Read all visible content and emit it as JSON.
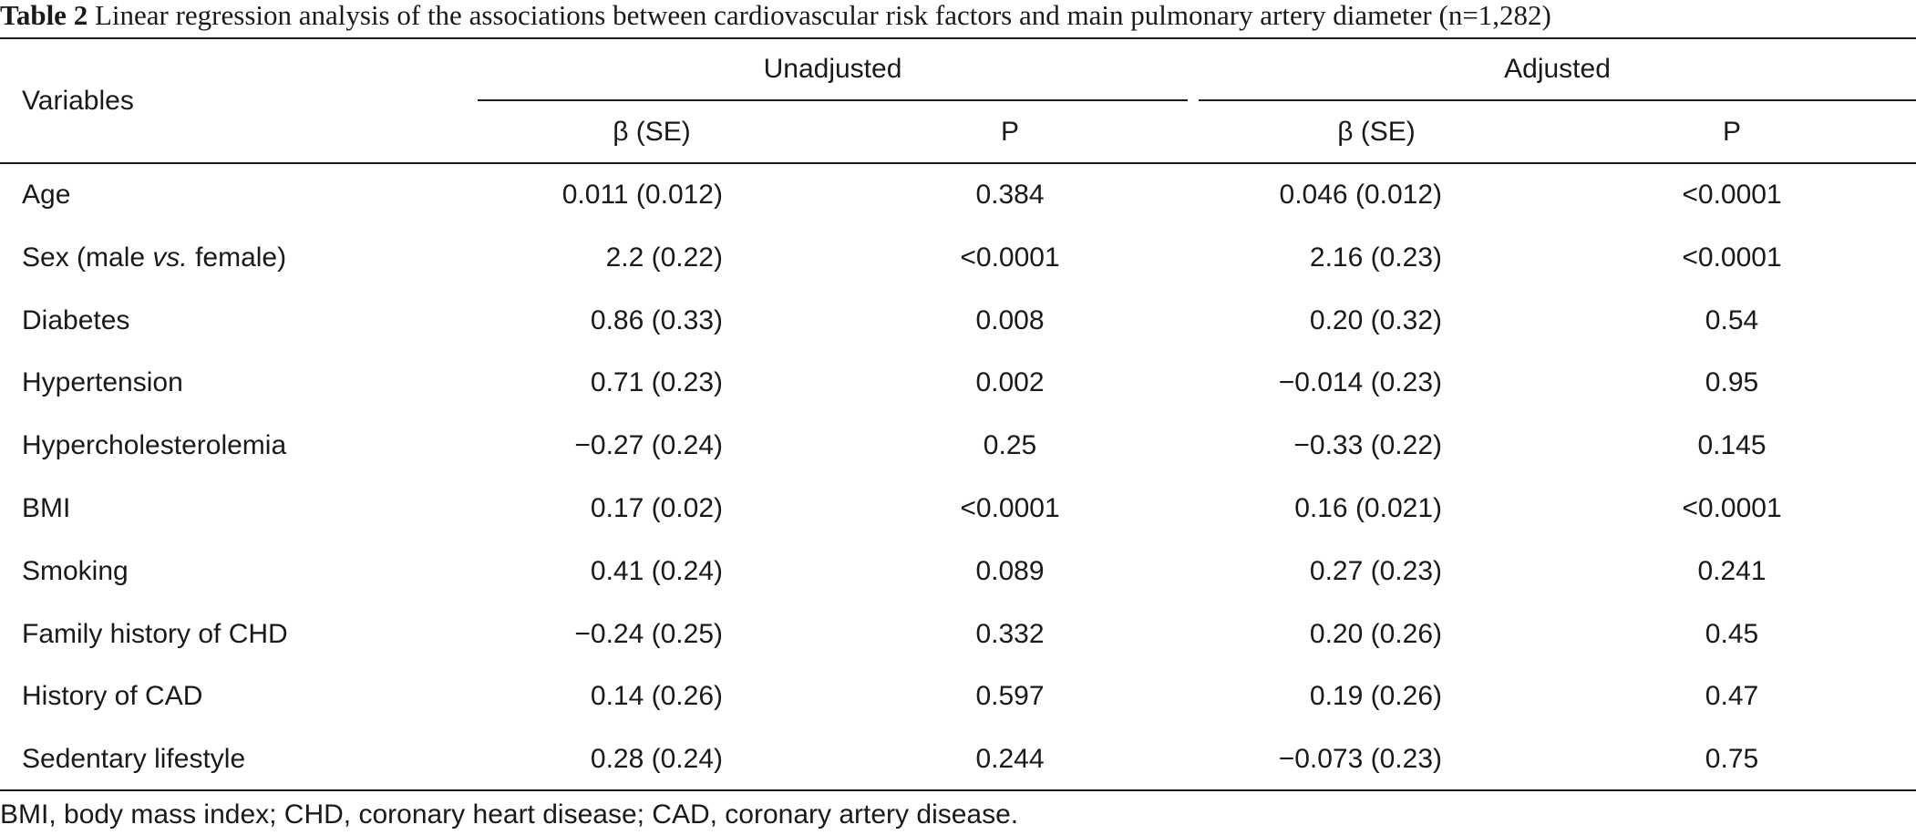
{
  "caption": {
    "label": "Table 2",
    "text": "Linear regression analysis of the associations between cardiovascular risk factors and main pulmonary artery diameter (n=1,282)"
  },
  "header": {
    "variables": "Variables",
    "group_unadjusted": "Unadjusted",
    "group_adjusted": "Adjusted",
    "beta_se": "β (SE)",
    "p": "P"
  },
  "rows": [
    {
      "variable": "Age",
      "u_beta": "0.011 (0.012)",
      "u_p": "0.384",
      "a_beta": "0.046 (0.012)",
      "a_p": "<0.0001"
    },
    {
      "variable_prefix": "Sex (male ",
      "variable_italic": "vs.",
      "variable_suffix": " female)",
      "u_beta": "2.2 (0.22)",
      "u_p": "<0.0001",
      "a_beta": "2.16 (0.23)",
      "a_p": "<0.0001"
    },
    {
      "variable": "Diabetes",
      "u_beta": "0.86 (0.33)",
      "u_p": "0.008",
      "a_beta": "0.20 (0.32)",
      "a_p": "0.54"
    },
    {
      "variable": "Hypertension",
      "u_beta": "0.71 (0.23)",
      "u_p": "0.002",
      "a_beta": "−0.014 (0.23)",
      "a_p": "0.95"
    },
    {
      "variable": "Hypercholesterolemia",
      "u_beta": "−0.27 (0.24)",
      "u_p": "0.25",
      "a_beta": "−0.33 (0.22)",
      "a_p": "0.145"
    },
    {
      "variable": "BMI",
      "u_beta": "0.17 (0.02)",
      "u_p": "<0.0001",
      "a_beta": "0.16 (0.021)",
      "a_p": "<0.0001"
    },
    {
      "variable": "Smoking",
      "u_beta": "0.41 (0.24)",
      "u_p": "0.089",
      "a_beta": "0.27 (0.23)",
      "a_p": "0.241"
    },
    {
      "variable": "Family history of CHD",
      "u_beta": "−0.24 (0.25)",
      "u_p": "0.332",
      "a_beta": "0.20 (0.26)",
      "a_p": "0.45"
    },
    {
      "variable": "History of CAD",
      "u_beta": "0.14 (0.26)",
      "u_p": "0.597",
      "a_beta": "0.19 (0.26)",
      "a_p": "0.47"
    },
    {
      "variable": "Sedentary lifestyle",
      "u_beta": "0.28 (0.24)",
      "u_p": "0.244",
      "a_beta": "−0.073 (0.23)",
      "a_p": "0.75"
    }
  ],
  "footnote": "BMI, body mass index; CHD, coronary heart disease; CAD, coronary artery disease."
}
